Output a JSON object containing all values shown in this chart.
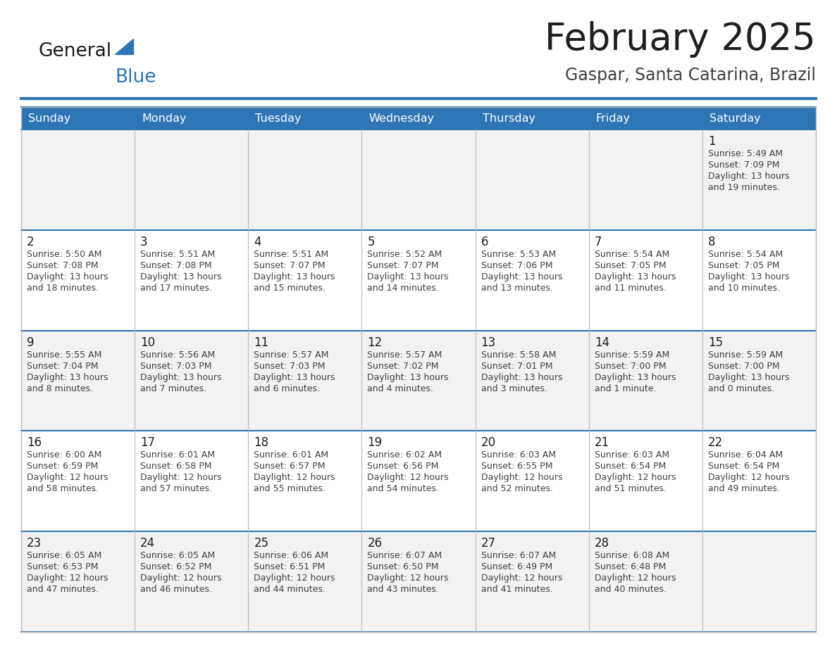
{
  "title": "February 2025",
  "subtitle": "Gaspar, Santa Catarina, Brazil",
  "header_bg": "#2E75B6",
  "header_text_color": "#FFFFFF",
  "weekdays": [
    "Sunday",
    "Monday",
    "Tuesday",
    "Wednesday",
    "Thursday",
    "Friday",
    "Saturday"
  ],
  "title_color": "#1F1F1F",
  "subtitle_color": "#404040",
  "cell_bg_row0": "#F2F2F2",
  "cell_bg_row1": "#FFFFFF",
  "cell_bg_row2": "#F2F2F2",
  "cell_bg_row3": "#FFFFFF",
  "cell_bg_row4": "#F2F2F2",
  "cell_text_color": "#404040",
  "day_num_color": "#1F1F1F",
  "grid_line_color": "#2E75B6",
  "outer_line_color": "#CCCCCC",
  "logo_general_color": "#1A1A1A",
  "logo_blue_color": "#2E75B6",
  "days": [
    {
      "day": 1,
      "col": 6,
      "row": 0,
      "sunrise": "5:49 AM",
      "sunset": "7:09 PM",
      "daylight_h": "13 hours",
      "daylight_m": "and 19 minutes."
    },
    {
      "day": 2,
      "col": 0,
      "row": 1,
      "sunrise": "5:50 AM",
      "sunset": "7:08 PM",
      "daylight_h": "13 hours",
      "daylight_m": "and 18 minutes."
    },
    {
      "day": 3,
      "col": 1,
      "row": 1,
      "sunrise": "5:51 AM",
      "sunset": "7:08 PM",
      "daylight_h": "13 hours",
      "daylight_m": "and 17 minutes."
    },
    {
      "day": 4,
      "col": 2,
      "row": 1,
      "sunrise": "5:51 AM",
      "sunset": "7:07 PM",
      "daylight_h": "13 hours",
      "daylight_m": "and 15 minutes."
    },
    {
      "day": 5,
      "col": 3,
      "row": 1,
      "sunrise": "5:52 AM",
      "sunset": "7:07 PM",
      "daylight_h": "13 hours",
      "daylight_m": "and 14 minutes."
    },
    {
      "day": 6,
      "col": 4,
      "row": 1,
      "sunrise": "5:53 AM",
      "sunset": "7:06 PM",
      "daylight_h": "13 hours",
      "daylight_m": "and 13 minutes."
    },
    {
      "day": 7,
      "col": 5,
      "row": 1,
      "sunrise": "5:54 AM",
      "sunset": "7:05 PM",
      "daylight_h": "13 hours",
      "daylight_m": "and 11 minutes."
    },
    {
      "day": 8,
      "col": 6,
      "row": 1,
      "sunrise": "5:54 AM",
      "sunset": "7:05 PM",
      "daylight_h": "13 hours",
      "daylight_m": "and 10 minutes."
    },
    {
      "day": 9,
      "col": 0,
      "row": 2,
      "sunrise": "5:55 AM",
      "sunset": "7:04 PM",
      "daylight_h": "13 hours",
      "daylight_m": "and 8 minutes."
    },
    {
      "day": 10,
      "col": 1,
      "row": 2,
      "sunrise": "5:56 AM",
      "sunset": "7:03 PM",
      "daylight_h": "13 hours",
      "daylight_m": "and 7 minutes."
    },
    {
      "day": 11,
      "col": 2,
      "row": 2,
      "sunrise": "5:57 AM",
      "sunset": "7:03 PM",
      "daylight_h": "13 hours",
      "daylight_m": "and 6 minutes."
    },
    {
      "day": 12,
      "col": 3,
      "row": 2,
      "sunrise": "5:57 AM",
      "sunset": "7:02 PM",
      "daylight_h": "13 hours",
      "daylight_m": "and 4 minutes."
    },
    {
      "day": 13,
      "col": 4,
      "row": 2,
      "sunrise": "5:58 AM",
      "sunset": "7:01 PM",
      "daylight_h": "13 hours",
      "daylight_m": "and 3 minutes."
    },
    {
      "day": 14,
      "col": 5,
      "row": 2,
      "sunrise": "5:59 AM",
      "sunset": "7:00 PM",
      "daylight_h": "13 hours",
      "daylight_m": "and 1 minute."
    },
    {
      "day": 15,
      "col": 6,
      "row": 2,
      "sunrise": "5:59 AM",
      "sunset": "7:00 PM",
      "daylight_h": "13 hours",
      "daylight_m": "and 0 minutes."
    },
    {
      "day": 16,
      "col": 0,
      "row": 3,
      "sunrise": "6:00 AM",
      "sunset": "6:59 PM",
      "daylight_h": "12 hours",
      "daylight_m": "and 58 minutes."
    },
    {
      "day": 17,
      "col": 1,
      "row": 3,
      "sunrise": "6:01 AM",
      "sunset": "6:58 PM",
      "daylight_h": "12 hours",
      "daylight_m": "and 57 minutes."
    },
    {
      "day": 18,
      "col": 2,
      "row": 3,
      "sunrise": "6:01 AM",
      "sunset": "6:57 PM",
      "daylight_h": "12 hours",
      "daylight_m": "and 55 minutes."
    },
    {
      "day": 19,
      "col": 3,
      "row": 3,
      "sunrise": "6:02 AM",
      "sunset": "6:56 PM",
      "daylight_h": "12 hours",
      "daylight_m": "and 54 minutes."
    },
    {
      "day": 20,
      "col": 4,
      "row": 3,
      "sunrise": "6:03 AM",
      "sunset": "6:55 PM",
      "daylight_h": "12 hours",
      "daylight_m": "and 52 minutes."
    },
    {
      "day": 21,
      "col": 5,
      "row": 3,
      "sunrise": "6:03 AM",
      "sunset": "6:54 PM",
      "daylight_h": "12 hours",
      "daylight_m": "and 51 minutes."
    },
    {
      "day": 22,
      "col": 6,
      "row": 3,
      "sunrise": "6:04 AM",
      "sunset": "6:54 PM",
      "daylight_h": "12 hours",
      "daylight_m": "and 49 minutes."
    },
    {
      "day": 23,
      "col": 0,
      "row": 4,
      "sunrise": "6:05 AM",
      "sunset": "6:53 PM",
      "daylight_h": "12 hours",
      "daylight_m": "and 47 minutes."
    },
    {
      "day": 24,
      "col": 1,
      "row": 4,
      "sunrise": "6:05 AM",
      "sunset": "6:52 PM",
      "daylight_h": "12 hours",
      "daylight_m": "and 46 minutes."
    },
    {
      "day": 25,
      "col": 2,
      "row": 4,
      "sunrise": "6:06 AM",
      "sunset": "6:51 PM",
      "daylight_h": "12 hours",
      "daylight_m": "and 44 minutes."
    },
    {
      "day": 26,
      "col": 3,
      "row": 4,
      "sunrise": "6:07 AM",
      "sunset": "6:50 PM",
      "daylight_h": "12 hours",
      "daylight_m": "and 43 minutes."
    },
    {
      "day": 27,
      "col": 4,
      "row": 4,
      "sunrise": "6:07 AM",
      "sunset": "6:49 PM",
      "daylight_h": "12 hours",
      "daylight_m": "and 41 minutes."
    },
    {
      "day": 28,
      "col": 5,
      "row": 4,
      "sunrise": "6:08 AM",
      "sunset": "6:48 PM",
      "daylight_h": "12 hours",
      "daylight_m": "and 40 minutes."
    }
  ]
}
